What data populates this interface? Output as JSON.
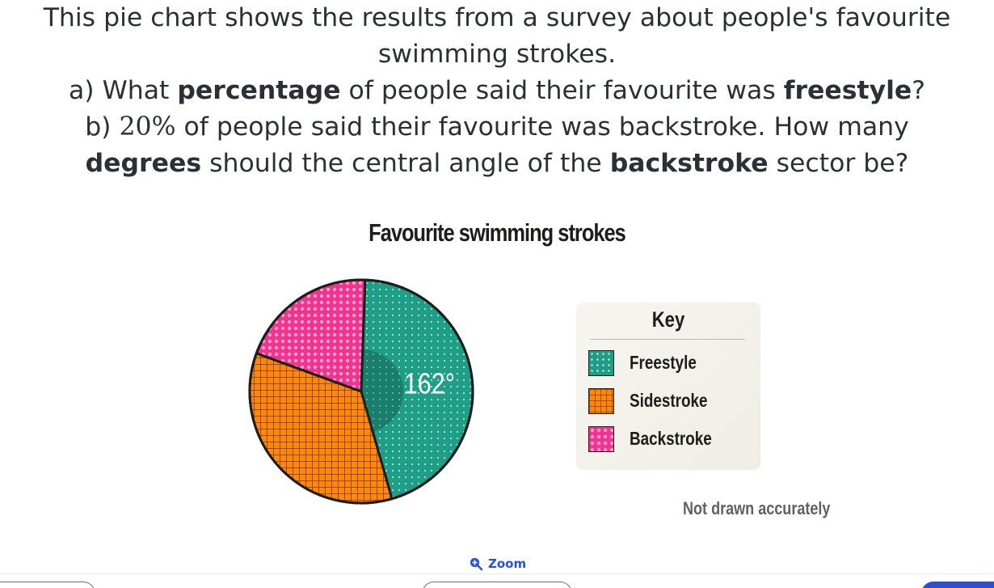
{
  "question": {
    "intro_line1": "This pie chart shows the results from a survey about people's favourite",
    "intro_line2": "swimming strokes.",
    "part_a": {
      "prefix": "a) What ",
      "bold1": "percentage",
      "middle": " of people said their favourite was ",
      "bold2": "freestyle",
      "suffix": "?"
    },
    "part_b": {
      "prefix": "b) ",
      "math": "20%",
      "text": " of people said their favourite was backstroke. How many",
      "line2_bold1": "degrees",
      "line2_middle": " should the central angle of the ",
      "line2_bold2": "backstroke",
      "line2_suffix": " sector be?"
    }
  },
  "chart_data": {
    "type": "pie",
    "title": "Favourite swimming strokes",
    "slices": [
      {
        "label": "Freestyle",
        "angle_degrees": 162,
        "angle_label": "162°",
        "color": "#1f9e87",
        "pattern": "dots"
      },
      {
        "label": "Sidestroke",
        "angle_degrees": 126,
        "color": "#ff8a00",
        "pattern": "grid"
      },
      {
        "label": "Backstroke",
        "angle_degrees": 72,
        "color": "#f0338c",
        "pattern": "dots-large"
      }
    ],
    "legend": {
      "title": "Key",
      "position": "right",
      "items": [
        "Freestyle",
        "Sidestroke",
        "Backstroke"
      ]
    },
    "note": "Not drawn accurately"
  },
  "zoom": {
    "label": "Zoom",
    "icon": "zoom-in-icon"
  },
  "colors": {
    "accent": "#2c4fd8",
    "text": "#2b2f36"
  }
}
